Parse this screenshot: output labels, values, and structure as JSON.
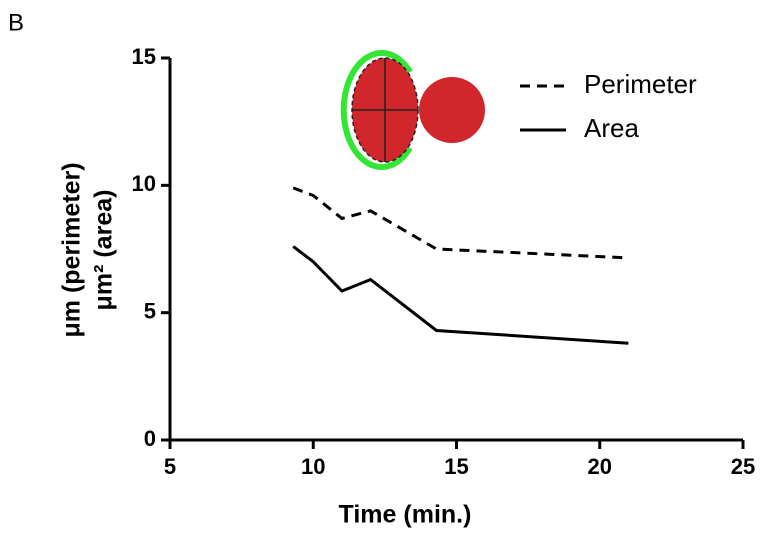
{
  "chart_data": {
    "type": "line",
    "panel_label": "B",
    "x_label": "Time (min.)",
    "y_label": [
      "μm (perimeter)",
      "μm² (area)"
    ],
    "x": [
      9.3,
      10.0,
      11.0,
      12.0,
      14.3,
      21.0
    ],
    "series": [
      {
        "name": "Perimeter",
        "color": "#000000",
        "style": "dashed",
        "values": [
          9.9,
          9.6,
          8.7,
          9.0,
          7.5,
          7.15
        ]
      },
      {
        "name": "Area",
        "color": "#000000",
        "style": "solid",
        "values": [
          7.6,
          7.0,
          5.85,
          6.3,
          4.3,
          3.8
        ]
      }
    ],
    "xlim": [
      5,
      25
    ],
    "xticks": [
      5,
      10,
      15,
      20,
      25
    ],
    "ylim": [
      0,
      15
    ],
    "yticks": [
      0,
      5,
      10,
      15
    ],
    "grid": false
  }
}
